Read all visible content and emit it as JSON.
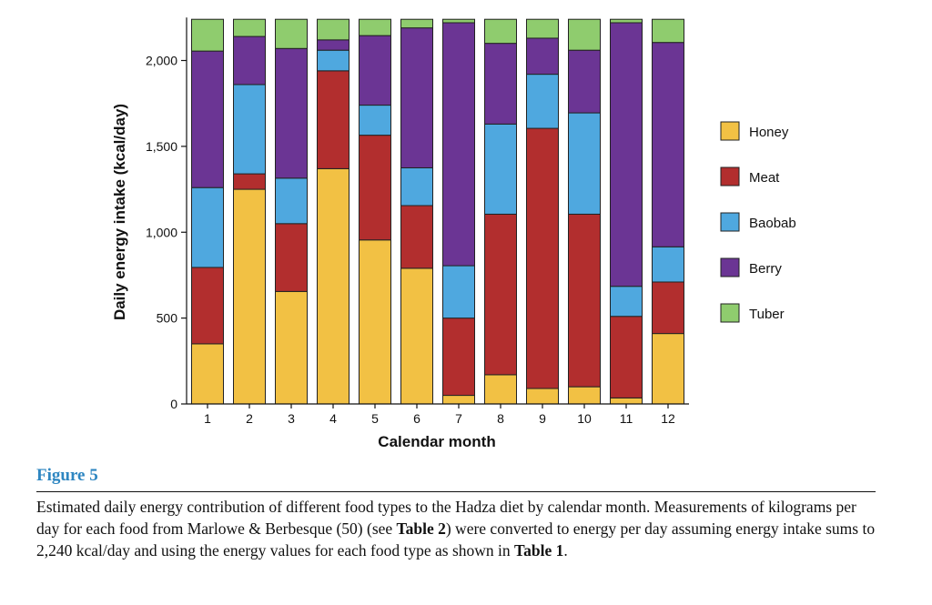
{
  "chart_data": {
    "type": "bar",
    "stacked": true,
    "categories": [
      "1",
      "2",
      "3",
      "4",
      "5",
      "6",
      "7",
      "8",
      "9",
      "10",
      "11",
      "12"
    ],
    "xlabel": "Calendar month",
    "ylabel": "Daily energy intake (kcal/day)",
    "ylim": [
      0,
      2240
    ],
    "yticks": [
      0,
      500,
      1000,
      1500,
      2000
    ],
    "ytick_labels": [
      "0",
      "500",
      "1,000",
      "1,500",
      "2,000"
    ],
    "legend_position": "right",
    "series": [
      {
        "name": "Honey",
        "color": "#f2c144",
        "values": [
          350,
          1250,
          655,
          1370,
          955,
          790,
          50,
          170,
          90,
          100,
          35,
          410
        ]
      },
      {
        "name": "Meat",
        "color": "#b22e2e",
        "values": [
          445,
          90,
          395,
          570,
          610,
          365,
          450,
          935,
          1515,
          1005,
          475,
          300
        ]
      },
      {
        "name": "Baobab",
        "color": "#4fa8df",
        "values": [
          465,
          520,
          265,
          120,
          175,
          220,
          305,
          525,
          315,
          590,
          175,
          205
        ]
      },
      {
        "name": "Berry",
        "color": "#6b3594",
        "values": [
          795,
          280,
          755,
          60,
          405,
          815,
          1415,
          470,
          210,
          365,
          1535,
          1190
        ]
      },
      {
        "name": "Tuber",
        "color": "#8fcc6e",
        "values": [
          185,
          100,
          170,
          120,
          95,
          50,
          20,
          140,
          110,
          180,
          20,
          135
        ]
      }
    ]
  },
  "figure": {
    "label": "Figure 5",
    "caption": {
      "part1": "Estimated daily energy contribution of different food types to the Hadza diet by calendar month. Measurements of kilograms per day for each food from Marlowe & Berbesque (50) (see ",
      "ref1": "Table 2",
      "part2": ") were converted to energy per day assuming energy intake sums to 2,240 kcal/day and using the energy values for each food type as shown in ",
      "ref2": "Table 1",
      "part3": "."
    }
  }
}
